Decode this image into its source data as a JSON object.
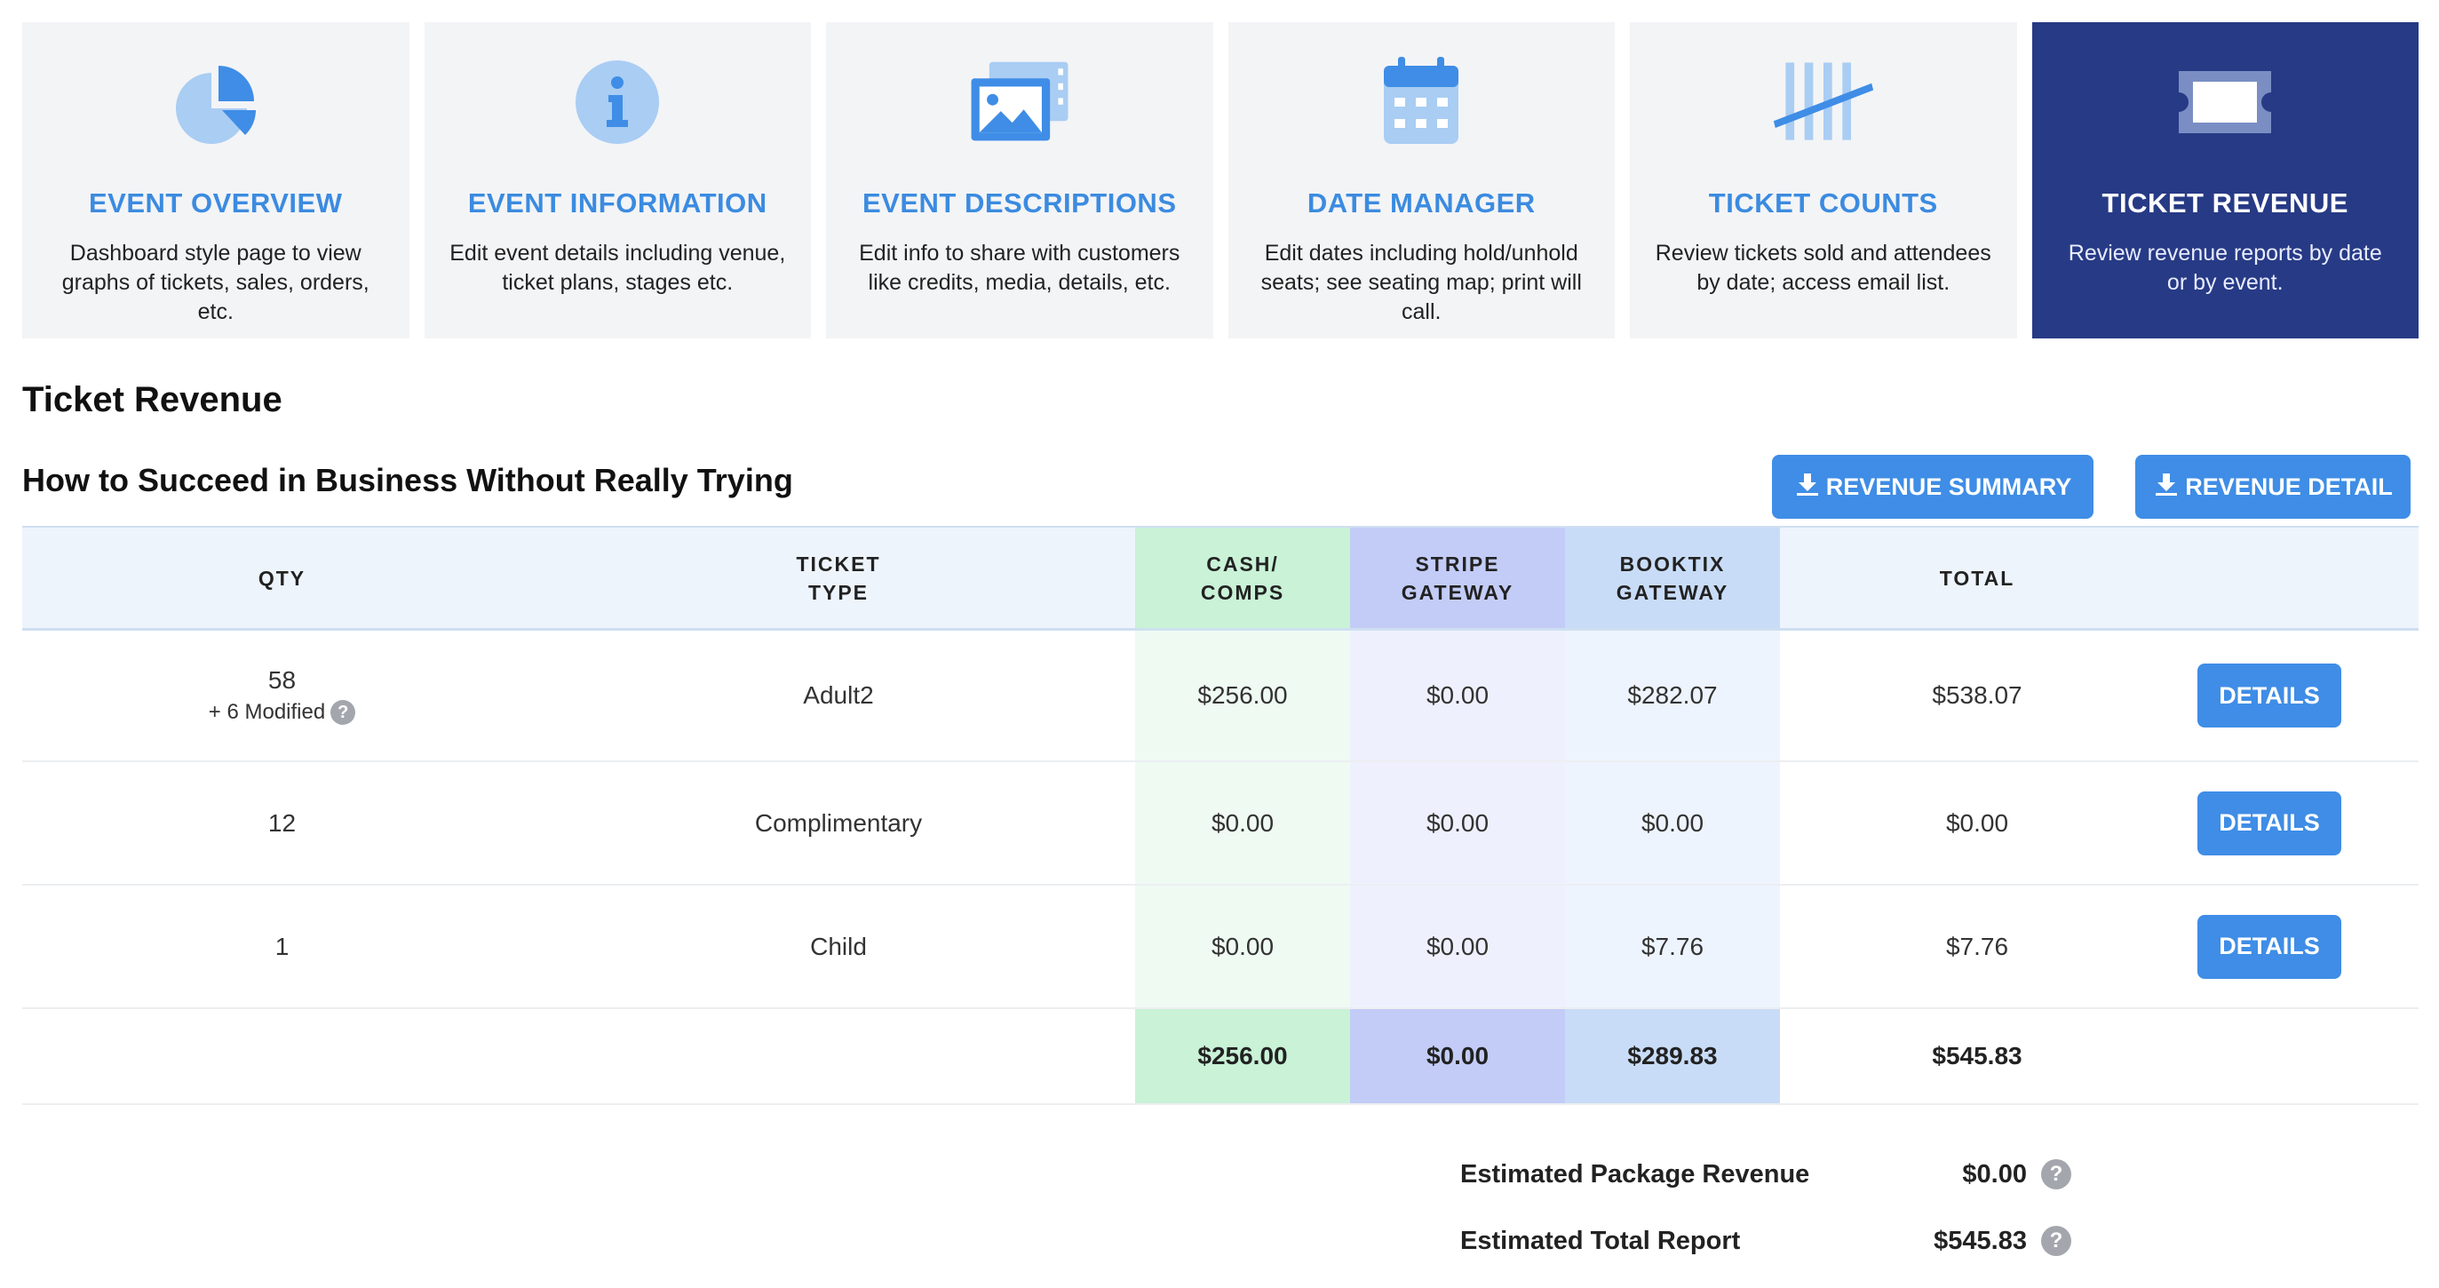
{
  "nav": {
    "cards": [
      {
        "title": "EVENT OVERVIEW",
        "desc": "Dashboard style page to view graphs of tickets, sales, orders, etc."
      },
      {
        "title": "EVENT INFORMATION",
        "desc": "Edit event details including venue, ticket plans, stages etc."
      },
      {
        "title": "EVENT DESCRIPTIONS",
        "desc": "Edit info to share with customers like credits, media, details, etc."
      },
      {
        "title": "DATE MANAGER",
        "desc": "Edit dates including hold/unhold seats; see seating map; print will call."
      },
      {
        "title": "TICKET COUNTS",
        "desc": "Review tickets sold and attendees by date; access email list."
      },
      {
        "title": "TICKET REVENUE",
        "desc": "Review revenue reports by date or by event."
      }
    ],
    "icons": [
      "pie-chart-icon",
      "info-icon",
      "image-gallery-icon",
      "calendar-icon",
      "tally-icon",
      "ticket-icon"
    ]
  },
  "page": {
    "title": "Ticket Revenue",
    "event_name": "How to Succeed in Business Without Really Trying"
  },
  "buttons": {
    "revenue_summary": "REVENUE SUMMARY",
    "revenue_detail": "REVENUE DETAIL",
    "details": "DETAILS"
  },
  "table": {
    "headers": {
      "qty": "QTY",
      "ticket_type_1": "TICKET",
      "ticket_type_2": "TYPE",
      "cash_1": "CASH/",
      "cash_2": "COMPS",
      "stripe_1": "STRIPE",
      "stripe_2": "GATEWAY",
      "booktix_1": "BOOKTIX",
      "booktix_2": "GATEWAY",
      "total": "TOTAL"
    },
    "rows": [
      {
        "qty": "58",
        "modified": "+ 6 Modified",
        "type": "Adult2",
        "cash": "$256.00",
        "stripe": "$0.00",
        "booktix": "$282.07",
        "total": "$538.07"
      },
      {
        "qty": "12",
        "type": "Complimentary",
        "cash": "$0.00",
        "stripe": "$0.00",
        "booktix": "$0.00",
        "total": "$0.00"
      },
      {
        "qty": "1",
        "type": "Child",
        "cash": "$0.00",
        "stripe": "$0.00",
        "booktix": "$7.76",
        "total": "$7.76"
      }
    ],
    "totals": {
      "cash": "$256.00",
      "stripe": "$0.00",
      "booktix": "$289.83",
      "total": "$545.83"
    }
  },
  "summary": {
    "package_label": "Estimated Package Revenue",
    "package_value": "$0.00",
    "total_label": "Estimated Total Report",
    "total_value": "$545.83"
  },
  "colors": {
    "accent": "#3f8de6",
    "active_card": "#273a85",
    "card_bg": "#f3f4f6",
    "cash_col": "#c9f2d7",
    "stripe_col": "#c3ccf7",
    "booktix_col": "#c9dcf7"
  }
}
